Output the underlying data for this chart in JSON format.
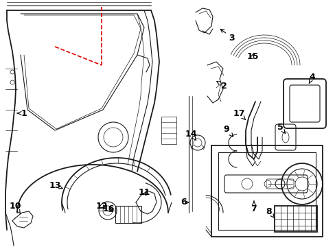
{
  "bg_color": "#ffffff",
  "line_color": "#1a1a1a",
  "red_dash_color": "#dd0000",
  "figsize": [
    4.89,
    3.6
  ],
  "dpi": 100,
  "fontsize": 9
}
